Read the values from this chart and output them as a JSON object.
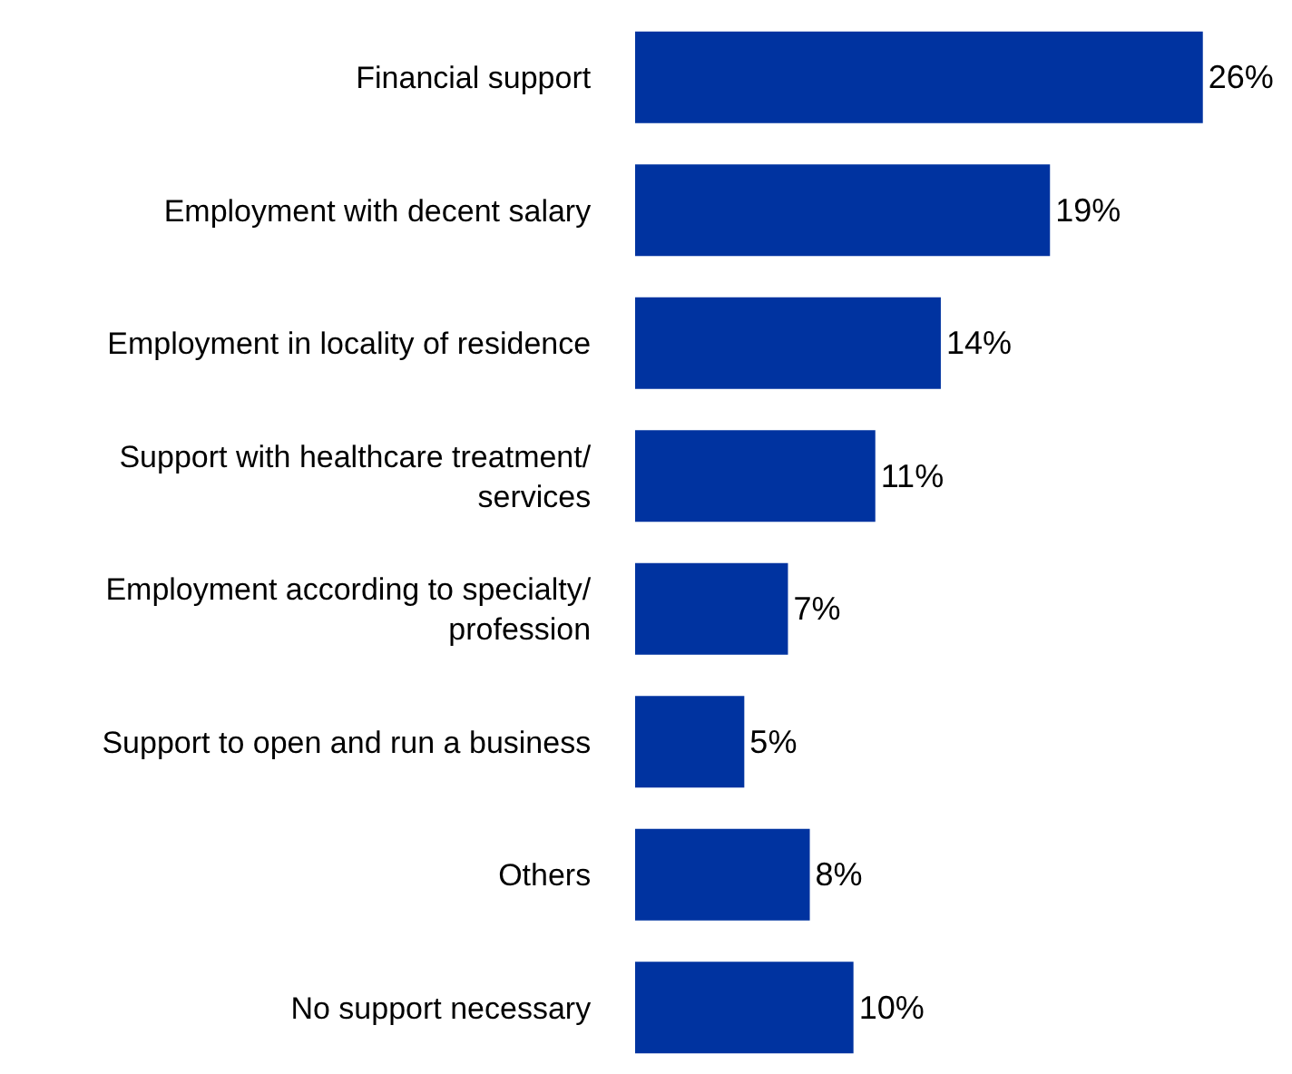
{
  "chart_data": {
    "type": "bar",
    "orientation": "horizontal",
    "categories": [
      "Financial support",
      "Employment with decent salary",
      "Employment in locality of residence",
      "Support with healthcare treatment/\nservices",
      "Employment according to specialty/\nprofession",
      "Support to open and run a business",
      "Others",
      "No support necessary"
    ],
    "values": [
      26,
      19,
      14,
      11,
      7,
      5,
      8,
      10
    ],
    "value_labels": [
      "26%",
      "19%",
      "14%",
      "11%",
      "7%",
      "5%",
      "8%",
      "10%"
    ],
    "color": "#0033a0",
    "xlim": [
      0,
      30
    ]
  }
}
